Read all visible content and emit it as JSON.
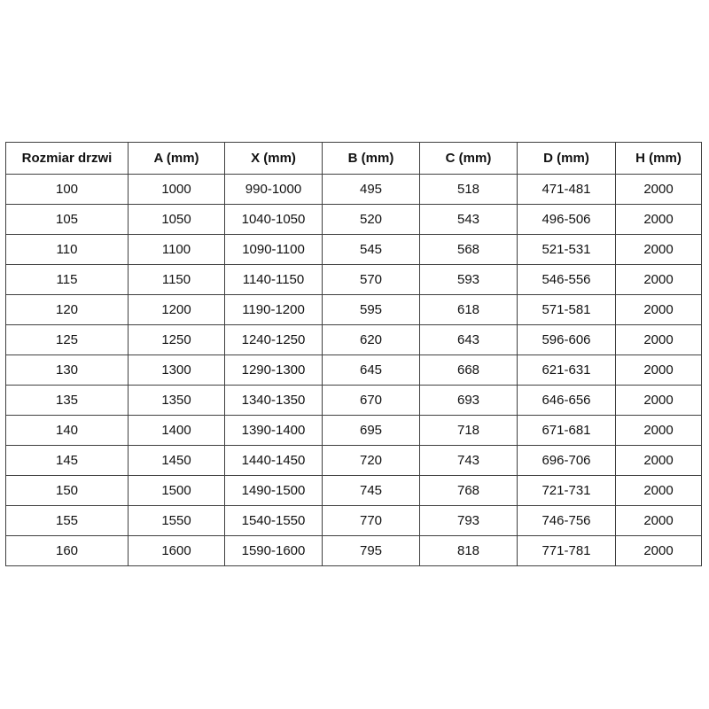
{
  "colors": {
    "background": "#ffffff",
    "border": "#404040",
    "text": "#111111"
  },
  "chart_data": {
    "type": "table",
    "title": "",
    "columns": [
      "Rozmiar drzwi",
      "A (mm)",
      "X (mm)",
      "B (mm)",
      "C (mm)",
      "D (mm)",
      "H (mm)"
    ],
    "rows": [
      [
        "100",
        "1000",
        "990-1000",
        "495",
        "518",
        "471-481",
        "2000"
      ],
      [
        "105",
        "1050",
        "1040-1050",
        "520",
        "543",
        "496-506",
        "2000"
      ],
      [
        "110",
        "1100",
        "1090-1100",
        "545",
        "568",
        "521-531",
        "2000"
      ],
      [
        "115",
        "1150",
        "1140-1150",
        "570",
        "593",
        "546-556",
        "2000"
      ],
      [
        "120",
        "1200",
        "1190-1200",
        "595",
        "618",
        "571-581",
        "2000"
      ],
      [
        "125",
        "1250",
        "1240-1250",
        "620",
        "643",
        "596-606",
        "2000"
      ],
      [
        "130",
        "1300",
        "1290-1300",
        "645",
        "668",
        "621-631",
        "2000"
      ],
      [
        "135",
        "1350",
        "1340-1350",
        "670",
        "693",
        "646-656",
        "2000"
      ],
      [
        "140",
        "1400",
        "1390-1400",
        "695",
        "718",
        "671-681",
        "2000"
      ],
      [
        "145",
        "1450",
        "1440-1450",
        "720",
        "743",
        "696-706",
        "2000"
      ],
      [
        "150",
        "1500",
        "1490-1500",
        "745",
        "768",
        "721-731",
        "2000"
      ],
      [
        "155",
        "1550",
        "1540-1550",
        "770",
        "793",
        "746-756",
        "2000"
      ],
      [
        "160",
        "1600",
        "1590-1600",
        "795",
        "818",
        "771-781",
        "2000"
      ]
    ]
  }
}
